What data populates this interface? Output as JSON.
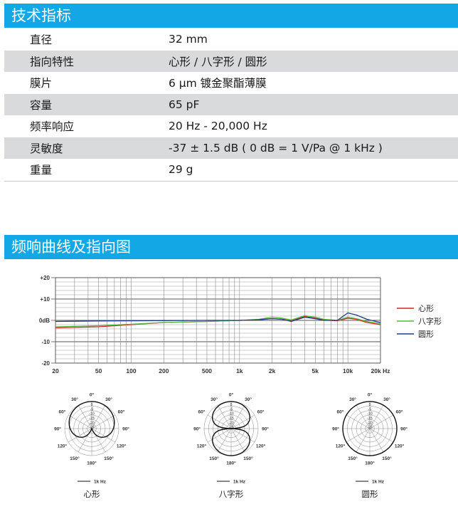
{
  "section_specs": {
    "title": "技术指标"
  },
  "specs": [
    {
      "key": "直径",
      "value": "32 mm"
    },
    {
      "key": "指向特性",
      "value": "心形 / 八字形 / 圆形"
    },
    {
      "key": "膜片",
      "value": "6 µm 镀金聚酯薄膜"
    },
    {
      "key": "容量",
      "value": "65 pF"
    },
    {
      "key": "频率响应",
      "value": "20 Hz - 20,000 Hz"
    },
    {
      "key": "灵敏度",
      "value": "-37 ± 1.5 dB ( 0 dB = 1 V/Pa @ 1 kHz )"
    },
    {
      "key": "重量",
      "value": "29 g"
    }
  ],
  "section_curves": {
    "title": "频响曲线及指向图"
  },
  "chart_data": [
    {
      "type": "line",
      "title": "",
      "xlabel": "",
      "ylabel": "",
      "x_scale": "log",
      "xlim": [
        20,
        20000
      ],
      "ylim": [
        -20,
        20
      ],
      "y_ticks": [
        20,
        10,
        0,
        -10,
        -20
      ],
      "y_tick_labels": [
        "+20",
        "+10",
        "0dB",
        "-10",
        "-20"
      ],
      "x_ticks": [
        20,
        50,
        100,
        200,
        500,
        1000,
        2000,
        5000,
        10000,
        20000
      ],
      "x_tick_labels": [
        "20",
        "50",
        "100",
        "200",
        "500",
        "1k",
        "2k",
        "5k",
        "10k",
        "20k Hz"
      ],
      "grid": true,
      "legend_position": "right",
      "series": [
        {
          "name": "心形",
          "color": "#d9241c",
          "x": [
            20,
            50,
            100,
            200,
            500,
            1000,
            1500,
            2000,
            2500,
            3000,
            4000,
            5000,
            6000,
            8000,
            10000,
            12000,
            15000,
            20000
          ],
          "y": [
            -3.5,
            -3,
            -2,
            -1,
            -0.5,
            0,
            0.3,
            0.8,
            0.5,
            -0.3,
            1.8,
            1.0,
            0.2,
            -0.2,
            1.0,
            0.5,
            -1,
            -2
          ]
        },
        {
          "name": "八字形",
          "color": "#58b440",
          "x": [
            20,
            50,
            100,
            200,
            500,
            1000,
            1500,
            2000,
            2500,
            3000,
            4000,
            5000,
            6000,
            8000,
            10000,
            12000,
            15000,
            20000
          ],
          "y": [
            -3,
            -2.5,
            -1.8,
            -1,
            -0.5,
            0,
            0.5,
            1.5,
            1.0,
            0.2,
            2.2,
            1.5,
            0.5,
            0,
            1.5,
            0.8,
            -0.5,
            -1.5
          ]
        },
        {
          "name": "圆形",
          "color": "#1d3b8c",
          "x": [
            20,
            50,
            100,
            200,
            500,
            1000,
            1500,
            2000,
            2500,
            3000,
            4000,
            5000,
            6000,
            8000,
            10000,
            12000,
            15000,
            20000
          ],
          "y": [
            -0.5,
            -0.3,
            -0.2,
            -0.1,
            0,
            0,
            0.3,
            0.8,
            0.5,
            -0.5,
            1.5,
            0.8,
            0,
            0,
            3.5,
            2.5,
            0.5,
            -1
          ]
        }
      ]
    },
    {
      "type": "polar",
      "title": "心形",
      "pattern": "cardioid",
      "angle_labels": [
        "0°",
        "30°",
        "60°",
        "90°",
        "120°",
        "150°",
        "180°",
        "150°",
        "120°",
        "90°",
        "60°",
        "30°"
      ],
      "ring_labels": [
        "0",
        "-5",
        "-10",
        "-15",
        "-20",
        "-25"
      ],
      "legend": "1k Hz"
    },
    {
      "type": "polar",
      "title": "八字形",
      "pattern": "figure-8",
      "angle_labels": [
        "0°",
        "30°",
        "60°",
        "90°",
        "120°",
        "150°",
        "180°",
        "150°",
        "120°",
        "90°",
        "60°",
        "30°"
      ],
      "ring_labels": [
        "0",
        "-5",
        "-10",
        "-15",
        "-20",
        "-25"
      ],
      "legend": "1k Hz"
    },
    {
      "type": "polar",
      "title": "圆形",
      "pattern": "omnidirectional",
      "angle_labels": [
        "0°",
        "30°",
        "60°",
        "90°",
        "120°",
        "150°",
        "180°",
        "150°",
        "120°",
        "90°",
        "60°",
        "30°"
      ],
      "ring_labels": [
        "0",
        "-5",
        "-10",
        "-15",
        "-20",
        "-25"
      ],
      "legend": "1k Hz"
    }
  ]
}
